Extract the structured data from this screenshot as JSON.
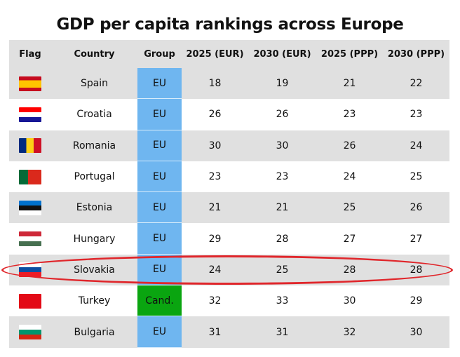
{
  "title": "GDP per capita rankings across Europe",
  "headers": [
    "Flag",
    "Country",
    "Group",
    "2025 (EUR)",
    "2030 (EUR)",
    "2025 (PPP)",
    "2030 (PPP)"
  ],
  "colors": {
    "eu": "#6fb6f0",
    "candidate": "#0aa510",
    "highlight": "#e0262b",
    "stripe": "#e0e0e0"
  },
  "highlighted_row": "Slovakia",
  "rows": [
    {
      "flag": "spain-flag",
      "country": "Spain",
      "group": "EU",
      "v": [
        18,
        19,
        21,
        22
      ]
    },
    {
      "flag": "croatia-flag",
      "country": "Croatia",
      "group": "EU",
      "v": [
        26,
        26,
        23,
        23
      ]
    },
    {
      "flag": "romania-flag",
      "country": "Romania",
      "group": "EU",
      "v": [
        30,
        30,
        26,
        24
      ]
    },
    {
      "flag": "portugal-flag",
      "country": "Portugal",
      "group": "EU",
      "v": [
        23,
        23,
        24,
        25
      ]
    },
    {
      "flag": "estonia-flag",
      "country": "Estonia",
      "group": "EU",
      "v": [
        21,
        21,
        25,
        26
      ]
    },
    {
      "flag": "hungary-flag",
      "country": "Hungary",
      "group": "EU",
      "v": [
        29,
        28,
        27,
        27
      ]
    },
    {
      "flag": "slovakia-flag",
      "country": "Slovakia",
      "group": "EU",
      "v": [
        24,
        25,
        28,
        28
      ]
    },
    {
      "flag": "turkey-flag",
      "country": "Turkey",
      "group": "Cand.",
      "v": [
        32,
        33,
        30,
        29
      ]
    },
    {
      "flag": "bulgaria-flag",
      "country": "Bulgaria",
      "group": "EU",
      "v": [
        31,
        31,
        32,
        30
      ]
    }
  ]
}
